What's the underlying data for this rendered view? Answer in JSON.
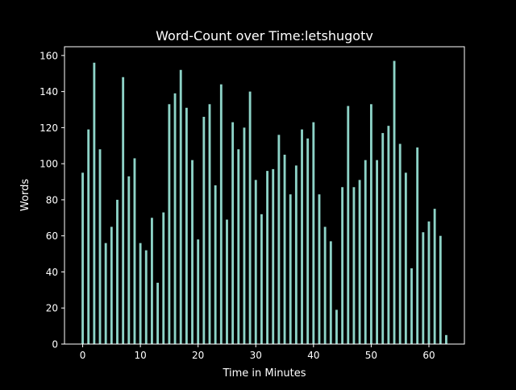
{
  "chart_data": {
    "type": "bar",
    "title": "Word-Count over Time:letshugotv",
    "xlabel": "Time in Minutes",
    "ylabel": "Words",
    "x": [
      0,
      1,
      2,
      3,
      4,
      5,
      6,
      7,
      8,
      9,
      10,
      11,
      12,
      13,
      14,
      15,
      16,
      17,
      18,
      19,
      20,
      21,
      22,
      23,
      24,
      25,
      26,
      27,
      28,
      29,
      30,
      31,
      32,
      33,
      34,
      35,
      36,
      37,
      38,
      39,
      40,
      41,
      42,
      43,
      44,
      45,
      46,
      47,
      48,
      49,
      50,
      51,
      52,
      53,
      54,
      55,
      56,
      57,
      58,
      59,
      60,
      61,
      62,
      63
    ],
    "values": [
      95,
      119,
      156,
      108,
      56,
      65,
      80,
      148,
      93,
      103,
      56,
      52,
      70,
      34,
      73,
      133,
      139,
      152,
      131,
      102,
      58,
      126,
      133,
      88,
      144,
      69,
      123,
      108,
      120,
      140,
      91,
      72,
      96,
      97,
      116,
      105,
      83,
      99,
      119,
      114,
      123,
      83,
      65,
      57,
      19,
      87,
      132,
      87,
      91,
      102,
      133,
      102,
      117,
      121,
      157,
      111,
      95,
      42,
      109,
      62,
      68,
      75,
      60,
      5
    ],
    "xlim": [
      -3.15,
      66.15
    ],
    "ylim": [
      0,
      164.85
    ],
    "xticks": [
      0,
      10,
      20,
      30,
      40,
      50,
      60
    ],
    "yticks": [
      0,
      20,
      40,
      60,
      80,
      100,
      120,
      140,
      160
    ],
    "grid": false,
    "bar_color": "#8dd3c7",
    "background": "#000000",
    "axis_color": "#ffffff"
  }
}
